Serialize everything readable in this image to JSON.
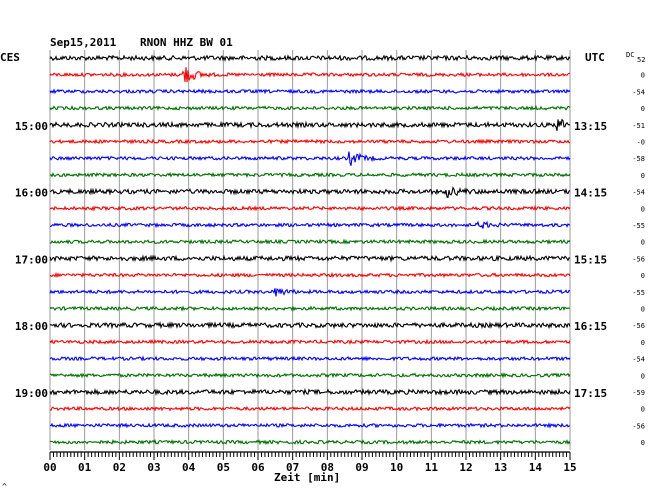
{
  "header": {
    "date": "Sep15,2011",
    "station": "RNON HHZ BW 01",
    "left_tz": "CES",
    "right_tz": "UTC",
    "dc_label": "DC",
    "first_dc": "52"
  },
  "chart_data": {
    "type": "line",
    "title": "Sep15,2011 RNON HHZ BW 01",
    "xlabel": "Zeit [min]",
    "xlim": [
      0,
      15
    ],
    "x_ticks": [
      "00",
      "01",
      "02",
      "03",
      "04",
      "05",
      "06",
      "07",
      "08",
      "09",
      "10",
      "11",
      "12",
      "13",
      "14",
      "15"
    ],
    "line_colors": [
      "#000000",
      "#ff0000",
      "#0000ff",
      "#007000"
    ],
    "left_hour_labels": [
      {
        "row": 4,
        "text": "15:00"
      },
      {
        "row": 8,
        "text": "16:00"
      },
      {
        "row": 12,
        "text": "17:00"
      },
      {
        "row": 16,
        "text": "18:00"
      },
      {
        "row": 20,
        "text": "19:00"
      }
    ],
    "right_hour_labels": [
      {
        "row": 4,
        "text": "13:15"
      },
      {
        "row": 8,
        "text": "14:15"
      },
      {
        "row": 12,
        "text": "15:15"
      },
      {
        "row": 16,
        "text": "16:15"
      },
      {
        "row": 20,
        "text": "17:15"
      }
    ],
    "dc_offsets": [
      "52",
      "0",
      "-54",
      "0",
      "-51",
      "-0",
      "-58",
      "0",
      "-54",
      "0",
      "-55",
      "0",
      "-56",
      "0",
      "-55",
      "0",
      "-56",
      "0",
      "-54",
      "0",
      "-59",
      "0",
      "-56",
      "0"
    ],
    "events": [
      {
        "row": 1,
        "minute": 3.9,
        "amplitude": 9
      },
      {
        "row": 4,
        "minute": 14.7,
        "amplitude": 5
      },
      {
        "row": 6,
        "minute": 8.7,
        "amplitude": 6
      },
      {
        "row": 8,
        "minute": 11.5,
        "amplitude": 4
      },
      {
        "row": 10,
        "minute": 12.4,
        "amplitude": 3
      },
      {
        "row": 14,
        "minute": 6.5,
        "amplitude": 4
      }
    ]
  },
  "footer_mark": "^"
}
